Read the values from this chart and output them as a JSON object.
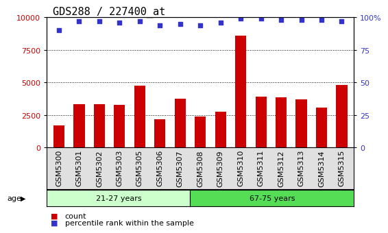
{
  "title": "GDS288 / 227400_at",
  "samples": [
    "GSM5300",
    "GSM5301",
    "GSM5302",
    "GSM5303",
    "GSM5305",
    "GSM5306",
    "GSM5307",
    "GSM5308",
    "GSM5309",
    "GSM5310",
    "GSM5311",
    "GSM5312",
    "GSM5313",
    "GSM5314",
    "GSM5315"
  ],
  "counts": [
    1700,
    3300,
    3350,
    3250,
    4750,
    2150,
    3750,
    2400,
    2750,
    8600,
    3900,
    3850,
    3700,
    3050,
    4800
  ],
  "percentiles": [
    90,
    97,
    97,
    96,
    97,
    94,
    95,
    94,
    96,
    99,
    99,
    98,
    98,
    98,
    97
  ],
  "bar_color": "#cc0000",
  "dot_color": "#3333cc",
  "ylim_left": [
    0,
    10000
  ],
  "ylim_right": [
    0,
    100
  ],
  "yticks_left": [
    0,
    2500,
    5000,
    7500,
    10000
  ],
  "yticks_right": [
    0,
    25,
    50,
    75,
    100
  ],
  "group1_label": "21-27 years",
  "group2_label": "67-75 years",
  "group1_samples": 7,
  "group2_samples": 8,
  "group1_color": "#ccffcc",
  "group2_color": "#55dd55",
  "age_label": "age",
  "legend_count": "count",
  "legend_percentile": "percentile rank within the sample",
  "plot_bg": "#ffffff",
  "xtick_bg": "#e0e0e0",
  "title_fontsize": 11,
  "tick_fontsize": 8,
  "label_fontsize": 8
}
